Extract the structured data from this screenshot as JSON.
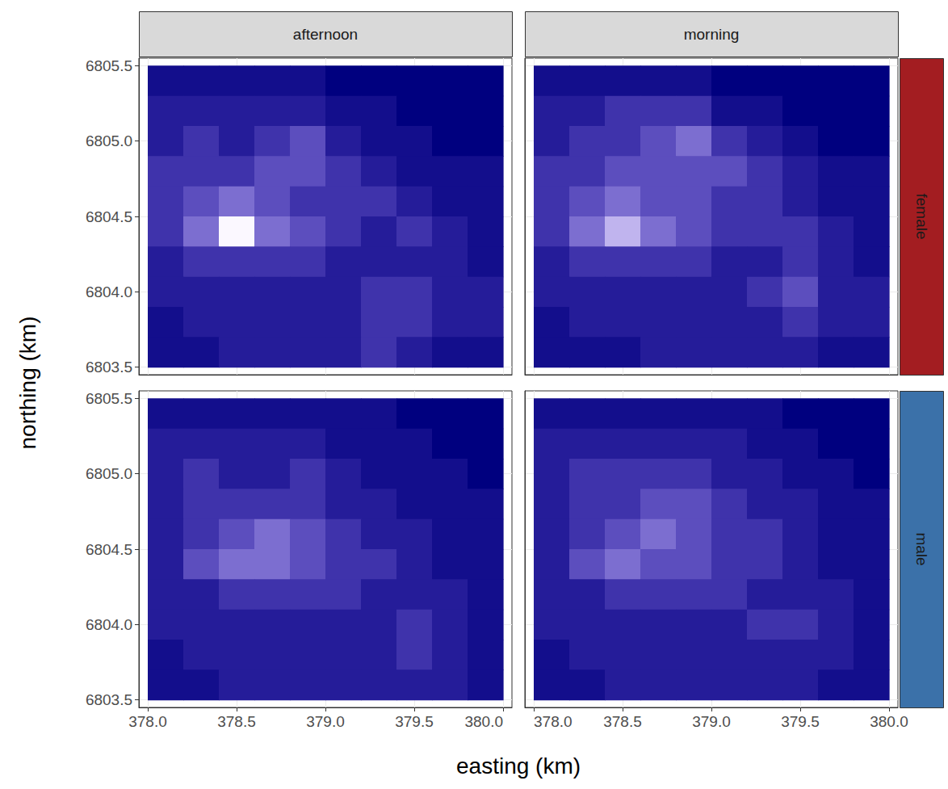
{
  "chart_data": {
    "type": "heatmap",
    "x_label": "easting (km)",
    "y_label": "northing (km)",
    "columns": [
      "afternoon",
      "morning"
    ],
    "rows": [
      "female",
      "male"
    ],
    "xlim": [
      377.95,
      380.05
    ],
    "ylim": [
      6803.45,
      6805.55
    ],
    "xticks": [
      {
        "value": 378,
        "label": "378.0"
      },
      378.5,
      {
        "value": 379,
        "label": "379.0"
      },
      379.5,
      {
        "value": 380,
        "label": "380.0"
      }
    ],
    "yticks": [
      6803.5,
      {
        "value": 6804,
        "label": "6804.0"
      },
      6804.5,
      {
        "value": 6805,
        "label": "6805.0"
      },
      6805.5
    ],
    "grid": true,
    "x": [
      378.1,
      378.3,
      378.5,
      378.7,
      378.9,
      379.1,
      379.3,
      379.5,
      379.7,
      379.9
    ],
    "y": [
      6805.4,
      6805.2,
      6805.0,
      6804.8,
      6804.6,
      6804.4,
      6804.2,
      6804.0,
      6803.8,
      6803.6
    ],
    "zlim": [
      0,
      9
    ],
    "panels": [
      {
        "column": "afternoon",
        "row": "female",
        "values": [
          [
            1,
            1,
            1,
            1,
            1,
            0,
            0,
            0,
            0,
            0
          ],
          [
            2,
            2,
            2,
            2,
            2,
            1,
            1,
            0,
            0,
            0
          ],
          [
            2,
            3,
            2,
            3,
            4,
            2,
            1,
            1,
            0,
            0
          ],
          [
            3,
            3,
            3,
            4,
            4,
            3,
            2,
            1,
            1,
            1
          ],
          [
            3,
            4,
            5,
            4,
            3,
            3,
            3,
            2,
            1,
            1
          ],
          [
            3,
            5,
            9,
            5,
            4,
            3,
            2,
            3,
            2,
            1
          ],
          [
            2,
            3,
            3,
            3,
            3,
            2,
            2,
            2,
            2,
            1
          ],
          [
            2,
            2,
            2,
            2,
            2,
            2,
            3,
            3,
            2,
            2
          ],
          [
            1,
            2,
            2,
            2,
            2,
            2,
            3,
            3,
            2,
            2
          ],
          [
            1,
            1,
            2,
            2,
            2,
            2,
            3,
            2,
            1,
            1
          ]
        ]
      },
      {
        "column": "morning",
        "row": "female",
        "values": [
          [
            1,
            1,
            1,
            1,
            1,
            0,
            0,
            0,
            0,
            0
          ],
          [
            2,
            2,
            3,
            3,
            3,
            1,
            1,
            0,
            0,
            0
          ],
          [
            2,
            3,
            3,
            4,
            5,
            3,
            2,
            1,
            0,
            0
          ],
          [
            3,
            3,
            4,
            4,
            4,
            4,
            3,
            2,
            1,
            1
          ],
          [
            3,
            4,
            5,
            4,
            4,
            3,
            3,
            2,
            1,
            1
          ],
          [
            3,
            5,
            7,
            5,
            4,
            3,
            3,
            3,
            2,
            1
          ],
          [
            2,
            3,
            3,
            3,
            3,
            2,
            2,
            3,
            2,
            1
          ],
          [
            2,
            2,
            2,
            2,
            2,
            2,
            3,
            4,
            2,
            2
          ],
          [
            1,
            2,
            2,
            2,
            2,
            2,
            2,
            3,
            2,
            2
          ],
          [
            1,
            1,
            1,
            2,
            2,
            2,
            2,
            2,
            1,
            1
          ]
        ]
      },
      {
        "column": "afternoon",
        "row": "male",
        "values": [
          [
            1,
            1,
            1,
            1,
            1,
            1,
            1,
            0,
            0,
            0
          ],
          [
            2,
            2,
            2,
            2,
            2,
            1,
            1,
            1,
            0,
            0
          ],
          [
            2,
            3,
            2,
            2,
            3,
            2,
            1,
            1,
            1,
            0
          ],
          [
            2,
            3,
            3,
            3,
            3,
            2,
            2,
            1,
            1,
            1
          ],
          [
            2,
            3,
            4,
            5,
            4,
            3,
            2,
            2,
            1,
            1
          ],
          [
            2,
            4,
            5,
            5,
            4,
            3,
            3,
            2,
            1,
            1
          ],
          [
            2,
            2,
            3,
            3,
            3,
            3,
            2,
            2,
            2,
            1
          ],
          [
            2,
            2,
            2,
            2,
            2,
            2,
            2,
            3,
            2,
            1
          ],
          [
            1,
            2,
            2,
            2,
            2,
            2,
            2,
            3,
            2,
            1
          ],
          [
            1,
            1,
            2,
            2,
            2,
            2,
            2,
            2,
            2,
            1
          ]
        ]
      },
      {
        "column": "morning",
        "row": "male",
        "values": [
          [
            1,
            1,
            1,
            1,
            1,
            1,
            1,
            0,
            0,
            0
          ],
          [
            2,
            2,
            2,
            2,
            2,
            2,
            1,
            1,
            0,
            0
          ],
          [
            2,
            3,
            3,
            3,
            3,
            2,
            2,
            1,
            1,
            0
          ],
          [
            2,
            3,
            3,
            4,
            4,
            3,
            2,
            2,
            1,
            1
          ],
          [
            2,
            3,
            4,
            5,
            4,
            3,
            3,
            2,
            1,
            1
          ],
          [
            2,
            4,
            5,
            4,
            4,
            3,
            3,
            2,
            1,
            1
          ],
          [
            2,
            2,
            3,
            3,
            3,
            3,
            2,
            2,
            2,
            1
          ],
          [
            2,
            2,
            2,
            2,
            2,
            2,
            3,
            3,
            2,
            1
          ],
          [
            1,
            2,
            2,
            2,
            2,
            2,
            2,
            2,
            2,
            1
          ],
          [
            1,
            1,
            2,
            2,
            2,
            2,
            2,
            2,
            1,
            1
          ]
        ]
      }
    ]
  }
}
